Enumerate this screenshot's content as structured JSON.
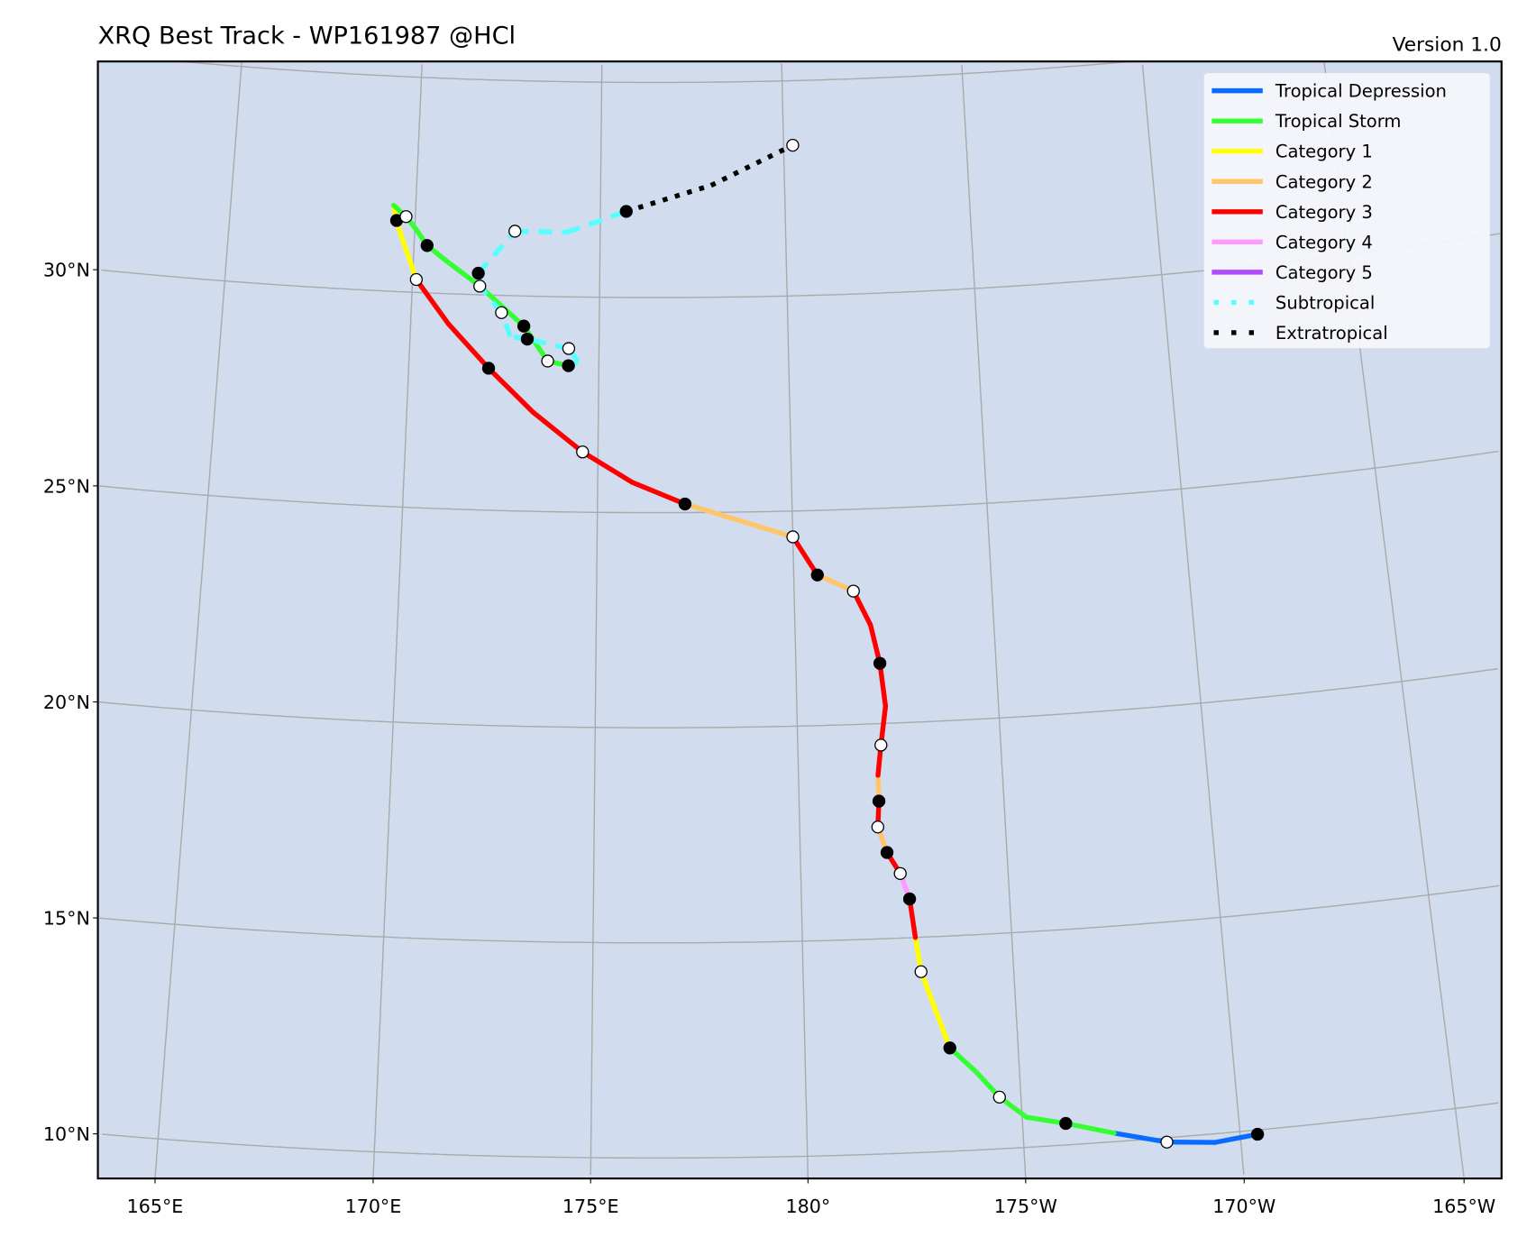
{
  "chart_data": {
    "type": "map-track",
    "title": "XRQ Best Track - WP161987  @HCl",
    "version": "Version 1.0",
    "legend_placement": "top-right",
    "grid": true,
    "background_color": "#d1dcee",
    "legend": [
      {
        "key": "TD",
        "label": "Tropical Depression",
        "color": "#0a6cff",
        "style": "solid"
      },
      {
        "key": "TS",
        "label": "Tropical Storm",
        "color": "#33ff33",
        "style": "solid"
      },
      {
        "key": "C1",
        "label": "Category 1",
        "color": "#ffff00",
        "style": "solid"
      },
      {
        "key": "C2",
        "label": "Category 2",
        "color": "#ffc566",
        "style": "solid"
      },
      {
        "key": "C3",
        "label": "Category 3",
        "color": "#ff0000",
        "style": "solid"
      },
      {
        "key": "C4",
        "label": "Category 4",
        "color": "#ff99ff",
        "style": "solid"
      },
      {
        "key": "C5",
        "label": "Category 5",
        "color": "#b04cff",
        "style": "solid"
      },
      {
        "key": "SS",
        "label": "Subtropical",
        "color": "#55ffff",
        "style": "dotted"
      },
      {
        "key": "EX",
        "label": "Extratropical",
        "color": "#000000",
        "style": "dotted"
      }
    ],
    "lon_ticks": [
      {
        "value": 165,
        "label": "165°E"
      },
      {
        "value": 170,
        "label": "170°E"
      },
      {
        "value": 175,
        "label": "175°E"
      },
      {
        "value": 180,
        "label": "180°"
      },
      {
        "value": -175,
        "label": "175°W"
      },
      {
        "value": -170,
        "label": "170°W"
      },
      {
        "value": -165,
        "label": "165°W"
      }
    ],
    "lat_ticks": [
      {
        "value": 10,
        "label": "10°N"
      },
      {
        "value": 15,
        "label": "15°N"
      },
      {
        "value": 20,
        "label": "20°N"
      },
      {
        "value": 25,
        "label": "25°N"
      },
      {
        "value": 30,
        "label": "30°N"
      }
    ],
    "track": [
      {
        "lon": -169.6,
        "lat": 9.9,
        "marker": "filled",
        "status": "TD"
      },
      {
        "lon": -170.6,
        "lat": 9.8,
        "marker": "none",
        "status": "TD"
      },
      {
        "lon": -171.7,
        "lat": 9.9,
        "marker": "open",
        "status": "TD"
      },
      {
        "lon": -172.9,
        "lat": 10.2,
        "marker": "none",
        "status": "TS"
      },
      {
        "lon": -174.0,
        "lat": 10.5,
        "marker": "filled",
        "status": "TS"
      },
      {
        "lon": -174.9,
        "lat": 10.7,
        "marker": "none",
        "status": "TS"
      },
      {
        "lon": -175.5,
        "lat": 11.2,
        "marker": "open",
        "status": "TS"
      },
      {
        "lon": -176.0,
        "lat": 11.8,
        "marker": "none",
        "status": "TS"
      },
      {
        "lon": -176.6,
        "lat": 12.4,
        "marker": "filled",
        "status": "C1"
      },
      {
        "lon": -177.2,
        "lat": 14.2,
        "marker": "open",
        "status": "C1"
      },
      {
        "lon": -177.3,
        "lat": 15.0,
        "marker": "none",
        "status": "C3"
      },
      {
        "lon": -177.4,
        "lat": 15.9,
        "marker": "filled",
        "status": "C4"
      },
      {
        "lon": -177.6,
        "lat": 16.5,
        "marker": "open",
        "status": "C3"
      },
      {
        "lon": -177.9,
        "lat": 17.0,
        "marker": "filled",
        "status": "C2"
      },
      {
        "lon": -178.1,
        "lat": 17.6,
        "marker": "open",
        "status": "C3"
      },
      {
        "lon": -178.05,
        "lat": 18.2,
        "marker": "filled",
        "status": "C2"
      },
      {
        "lon": -178.05,
        "lat": 18.8,
        "marker": "none",
        "status": "C3"
      },
      {
        "lon": -177.95,
        "lat": 19.5,
        "marker": "open",
        "status": "C3"
      },
      {
        "lon": -177.8,
        "lat": 20.4,
        "marker": "none",
        "status": "C3"
      },
      {
        "lon": -177.9,
        "lat": 21.4,
        "marker": "filled",
        "status": "C3"
      },
      {
        "lon": -178.1,
        "lat": 22.3,
        "marker": "none",
        "status": "C3"
      },
      {
        "lon": -178.5,
        "lat": 23.1,
        "marker": "open",
        "status": "C2"
      },
      {
        "lon": -179.4,
        "lat": 23.5,
        "marker": "filled",
        "status": "C3"
      },
      {
        "lon": 180.0,
        "lat": 24.4,
        "marker": "open",
        "status": "C2"
      },
      {
        "lon": 177.25,
        "lat": 25.2,
        "marker": "filled",
        "status": "C3"
      },
      {
        "lon": 175.9,
        "lat": 25.7,
        "marker": "none",
        "status": "C3"
      },
      {
        "lon": 174.6,
        "lat": 26.4,
        "marker": "open",
        "status": "C3"
      },
      {
        "lon": 173.3,
        "lat": 27.3,
        "marker": "none",
        "status": "C3"
      },
      {
        "lon": 172.1,
        "lat": 28.3,
        "marker": "filled",
        "status": "C3"
      },
      {
        "lon": 171.0,
        "lat": 29.3,
        "marker": "none",
        "status": "C3"
      },
      {
        "lon": 170.1,
        "lat": 30.3,
        "marker": "open",
        "status": "C1"
      },
      {
        "lon": 169.6,
        "lat": 31.4,
        "marker": "none",
        "status": "C1"
      },
      {
        "lon": 169.5,
        "lat": 31.65,
        "marker": "filled",
        "status": "C1"
      },
      {
        "lon": 169.4,
        "lat": 32.0,
        "marker": "none",
        "status": "TS"
      },
      {
        "lon": 169.75,
        "lat": 31.75,
        "marker": "open",
        "status": "TS"
      },
      {
        "lon": 170.05,
        "lat": 31.45,
        "marker": "none",
        "status": "TS"
      },
      {
        "lon": 170.35,
        "lat": 31.1,
        "marker": "filled",
        "status": "TS"
      },
      {
        "lon": 170.9,
        "lat": 30.75,
        "marker": "none",
        "status": "TS"
      },
      {
        "lon": 171.8,
        "lat": 30.2,
        "marker": "open",
        "status": "TS"
      },
      {
        "lon": 173.0,
        "lat": 29.3,
        "marker": "filled",
        "status": "TS"
      },
      {
        "lon": 173.65,
        "lat": 28.5,
        "marker": "open",
        "status": "TS"
      },
      {
        "lon": 174.2,
        "lat": 28.4,
        "marker": "filled",
        "status": "SS"
      },
      {
        "lon": 174.45,
        "lat": 28.5,
        "marker": "none",
        "status": "SS"
      },
      {
        "lon": 174.2,
        "lat": 28.8,
        "marker": "open",
        "status": "SS"
      },
      {
        "lon": 173.1,
        "lat": 29.0,
        "marker": "filled",
        "status": "SS"
      },
      {
        "lon": 172.65,
        "lat": 29.05,
        "marker": "none",
        "status": "SS"
      },
      {
        "lon": 172.4,
        "lat": 29.6,
        "marker": "open",
        "status": "SS"
      },
      {
        "lon": 171.9,
        "lat": 30.1,
        "marker": "none",
        "status": "SS"
      },
      {
        "lon": 171.75,
        "lat": 30.5,
        "marker": "filled",
        "status": "SS"
      },
      {
        "lon": 172.7,
        "lat": 31.5,
        "marker": "open",
        "status": "SS"
      },
      {
        "lon": 174.1,
        "lat": 31.5,
        "marker": "none",
        "status": "SS"
      },
      {
        "lon": 175.7,
        "lat": 32.0,
        "marker": "filled",
        "status": "EX"
      },
      {
        "lon": 178.0,
        "lat": 32.6,
        "marker": "none",
        "status": "EX"
      },
      {
        "lon": -179.75,
        "lat": 33.5,
        "marker": "open",
        "status": "EX"
      }
    ]
  }
}
